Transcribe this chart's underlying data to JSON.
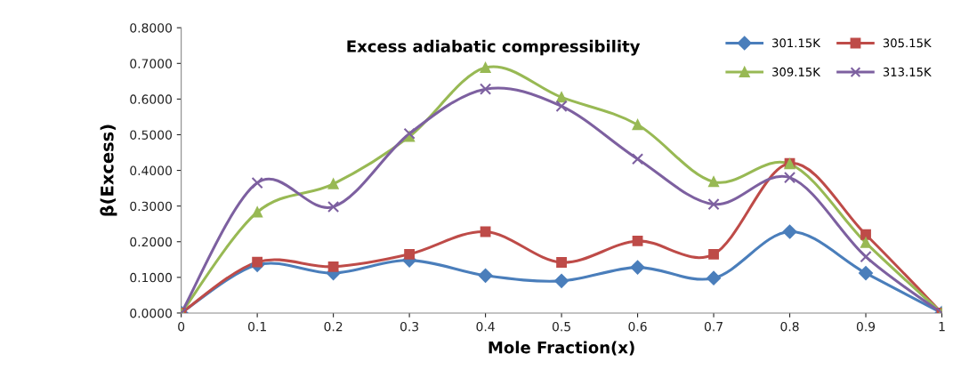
{
  "chart_data": {
    "type": "line",
    "title": "Excess adiabatic compressibility",
    "xlabel": "Mole Fraction(x)",
    "ylabel": "β(Excess)",
    "x": [
      0,
      0.1,
      0.2,
      0.3,
      0.4,
      0.5,
      0.6,
      0.7,
      0.8,
      0.9,
      1
    ],
    "series": [
      {
        "name": "301.15K",
        "color": "#4a7ebb",
        "marker": "diamond",
        "values": [
          0,
          0.135,
          0.112,
          0.148,
          0.105,
          0.09,
          0.128,
          0.098,
          0.228,
          0.112,
          0
        ]
      },
      {
        "name": "305.15K",
        "color": "#be4b48",
        "marker": "square",
        "values": [
          0,
          0.143,
          0.13,
          0.165,
          0.228,
          0.142,
          0.202,
          0.165,
          0.42,
          0.22,
          0
        ]
      },
      {
        "name": "309.15K",
        "color": "#98b954",
        "marker": "triangle",
        "values": [
          0,
          0.283,
          0.362,
          0.495,
          0.688,
          0.605,
          0.528,
          0.368,
          0.418,
          0.197,
          0
        ]
      },
      {
        "name": "313.15K",
        "color": "#7d60a0",
        "marker": "cross",
        "values": [
          0,
          0.365,
          0.298,
          0.503,
          0.628,
          0.58,
          0.432,
          0.305,
          0.38,
          0.158,
          0
        ]
      }
    ],
    "xlim": [
      0,
      1
    ],
    "xticks": [
      0,
      0.1,
      0.2,
      0.3,
      0.4,
      0.5,
      0.6,
      0.7,
      0.8,
      0.9,
      1
    ],
    "ylim": [
      0,
      0.8
    ],
    "yticks": [
      {
        "value": 0,
        "label": "0.0000"
      },
      {
        "value": 0.1,
        "label": "0.1000"
      },
      {
        "value": 0.2,
        "label": "0.2000"
      },
      {
        "value": 0.3,
        "label": "0.3000"
      },
      {
        "value": 0.4,
        "label": "0.4000"
      },
      {
        "value": 0.5,
        "label": "0.5000"
      },
      {
        "value": 0.6,
        "label": "0.6000"
      },
      {
        "value": 0.7,
        "label": "0.7000"
      },
      {
        "value": 0.8,
        "label": "0.8000"
      }
    ],
    "grid": false,
    "legend": "top right",
    "line_style": "solid"
  }
}
